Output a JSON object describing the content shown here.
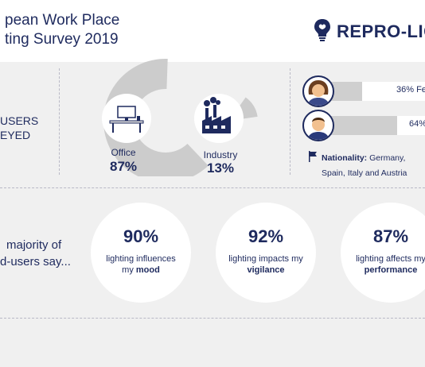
{
  "header": {
    "title_line1": "pean Work Place",
    "title_line2": "ting Survey 2019",
    "logo_text": "REPRO-LIG",
    "logo_icon": "lightbulb-brain-icon"
  },
  "users": {
    "label_line1": "USERS",
    "label_line2": "EYED"
  },
  "sector_chart": {
    "segments": [
      {
        "label": "Office",
        "value": "87%",
        "fraction": 0.87,
        "icon": "office-desk-icon",
        "color": "#cccccc"
      },
      {
        "label": "Industry",
        "value": "13%",
        "fraction": 0.13,
        "icon": "factory-icon",
        "color": "#cccccc"
      }
    ]
  },
  "gender": [
    {
      "text": "36% Fe",
      "fraction": 0.36,
      "icon": "female-avatar-icon"
    },
    {
      "text": "64%",
      "fraction": 0.64,
      "icon": "male-avatar-icon"
    }
  ],
  "nationality": {
    "label": "Nationality:",
    "countries_line1": "Germany,",
    "countries_line2": "Spain, Italy and Austria",
    "icon": "flag-icon"
  },
  "majority": {
    "line1": "majority of",
    "line2": "d-users say..."
  },
  "stats": [
    {
      "percent": "90%",
      "text": "lighting influences",
      "text2": "my",
      "bold": "mood"
    },
    {
      "percent": "92%",
      "text": "lighting impacts my",
      "text2": "",
      "bold": "vigilance"
    },
    {
      "percent": "87%",
      "text": "lighting affects my",
      "text2": "",
      "bold": "performance"
    }
  ],
  "colors": {
    "navy": "#1e2a5e",
    "grey": "#cccccc",
    "background": "#f0f0f0"
  }
}
